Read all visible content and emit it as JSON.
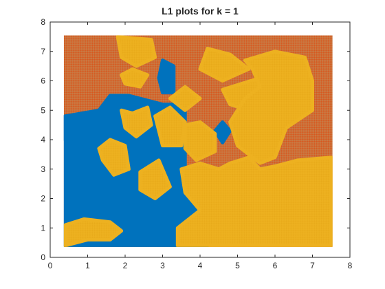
{
  "chart_data": {
    "type": "scatter",
    "title": "L1 plots for k = 1",
    "xlabel": "",
    "ylabel": "",
    "xlim": [
      0,
      8
    ],
    "ylim": [
      0,
      8
    ],
    "xticks": [
      0,
      1,
      2,
      3,
      4,
      5,
      6,
      7,
      8
    ],
    "yticks": [
      0,
      1,
      2,
      3,
      4,
      5,
      6,
      7,
      8
    ],
    "grid": false,
    "marker": "+",
    "grid_points": {
      "x_range": [
        0.4,
        7.5
      ],
      "y_range": [
        0.4,
        7.5
      ]
    },
    "series": [
      {
        "color": "#D95319",
        "class": "region-orange",
        "description_region": "background class (upper band above y≈3.3 and regions along left side)"
      },
      {
        "color": "#0072BD",
        "class": "region-blue",
        "polygons": [
          [
            [
              0.4,
              4.8
            ],
            [
              0.7,
              4.6
            ],
            [
              1.2,
              3.8
            ],
            [
              1.6,
              3.3
            ],
            [
              2.0,
              3.6
            ],
            [
              2.6,
              3.0
            ],
            [
              3.0,
              2.6
            ],
            [
              3.4,
              2.8
            ],
            [
              3.8,
              2.3
            ],
            [
              4.2,
              2.4
            ],
            [
              4.2,
              0.4
            ],
            [
              0.4,
              0.4
            ]
          ],
          [
            [
              0.4,
              4.8
            ],
            [
              1.3,
              5.0
            ],
            [
              1.6,
              5.5
            ],
            [
              2.1,
              5.5
            ],
            [
              3.0,
              5.2
            ],
            [
              3.6,
              5.2
            ],
            [
              3.6,
              2.8
            ],
            [
              3.0,
              2.6
            ],
            [
              1.5,
              3.4
            ],
            [
              0.4,
              4.0
            ]
          ],
          [
            [
              2.9,
              6.1
            ],
            [
              3.0,
              6.7
            ],
            [
              3.3,
              6.5
            ],
            [
              3.3,
              5.6
            ],
            [
              3.0,
              5.6
            ]
          ],
          [
            [
              4.4,
              4.3
            ],
            [
              4.6,
              4.6
            ],
            [
              4.8,
              4.3
            ],
            [
              4.6,
              3.9
            ]
          ]
        ]
      },
      {
        "color": "#EDB120",
        "class": "region-yellow",
        "polygons": [
          [
            [
              0.4,
              1.1
            ],
            [
              0.9,
              1.3
            ],
            [
              1.6,
              1.2
            ],
            [
              1.9,
              0.9
            ],
            [
              1.6,
              0.6
            ],
            [
              1.0,
              0.6
            ],
            [
              0.4,
              0.4
            ]
          ],
          [
            [
              1.8,
              7.5
            ],
            [
              2.7,
              7.4
            ],
            [
              2.8,
              6.8
            ],
            [
              2.3,
              6.5
            ],
            [
              1.9,
              6.8
            ]
          ],
          [
            [
              1.9,
              6.2
            ],
            [
              2.2,
              6.4
            ],
            [
              2.6,
              6.2
            ],
            [
              2.4,
              5.8
            ],
            [
              2.0,
              5.9
            ]
          ],
          [
            [
              1.9,
              5.0
            ],
            [
              2.2,
              4.9
            ],
            [
              2.6,
              5.1
            ],
            [
              2.7,
              4.5
            ],
            [
              2.3,
              4.1
            ],
            [
              2.0,
              4.4
            ]
          ],
          [
            [
              1.3,
              3.7
            ],
            [
              1.6,
              4.0
            ],
            [
              2.0,
              3.8
            ],
            [
              2.1,
              3.0
            ],
            [
              1.7,
              2.8
            ],
            [
              1.4,
              3.3
            ]
          ],
          [
            [
              2.4,
              2.9
            ],
            [
              2.9,
              3.3
            ],
            [
              3.2,
              2.4
            ],
            [
              2.8,
              2.0
            ],
            [
              2.4,
              2.3
            ]
          ],
          [
            [
              3.2,
              5.4
            ],
            [
              3.6,
              5.8
            ],
            [
              4.0,
              5.4
            ],
            [
              3.6,
              5.0
            ]
          ],
          [
            [
              2.8,
              4.8
            ],
            [
              3.2,
              5.1
            ],
            [
              3.6,
              4.6
            ],
            [
              3.5,
              3.8
            ],
            [
              3.0,
              3.8
            ]
          ],
          [
            [
              4.2,
              7.1
            ],
            [
              4.8,
              6.9
            ],
            [
              5.3,
              6.4
            ],
            [
              4.6,
              6.0
            ],
            [
              4.0,
              6.4
            ]
          ],
          [
            [
              4.6,
              5.7
            ],
            [
              5.1,
              5.9
            ],
            [
              5.6,
              6.1
            ],
            [
              5.8,
              5.5
            ],
            [
              5.3,
              5.0
            ],
            [
              4.8,
              5.2
            ]
          ],
          [
            [
              5.2,
              6.7
            ],
            [
              6.0,
              7.0
            ],
            [
              6.8,
              6.8
            ],
            [
              7.0,
              6.0
            ],
            [
              7.0,
              5.0
            ],
            [
              6.3,
              4.4
            ],
            [
              6.0,
              3.4
            ],
            [
              5.6,
              3.2
            ],
            [
              5.0,
              3.8
            ],
            [
              4.8,
              4.6
            ],
            [
              5.2,
              5.4
            ],
            [
              5.6,
              5.8
            ],
            [
              5.4,
              6.4
            ]
          ],
          [
            [
              3.6,
              4.5
            ],
            [
              4.0,
              4.6
            ],
            [
              4.4,
              4.2
            ],
            [
              4.4,
              3.6
            ],
            [
              3.9,
              3.3
            ],
            [
              3.6,
              3.7
            ]
          ],
          [
            [
              3.5,
              3.0
            ],
            [
              4.0,
              3.2
            ],
            [
              4.5,
              3.0
            ],
            [
              4.8,
              3.2
            ],
            [
              5.3,
              3.4
            ],
            [
              5.6,
              3.0
            ],
            [
              6.0,
              3.1
            ],
            [
              6.6,
              3.3
            ],
            [
              7.5,
              3.4
            ],
            [
              7.5,
              0.4
            ],
            [
              3.4,
              0.4
            ],
            [
              3.4,
              1.0
            ],
            [
              4.0,
              1.6
            ],
            [
              3.6,
              2.2
            ]
          ]
        ]
      }
    ]
  }
}
